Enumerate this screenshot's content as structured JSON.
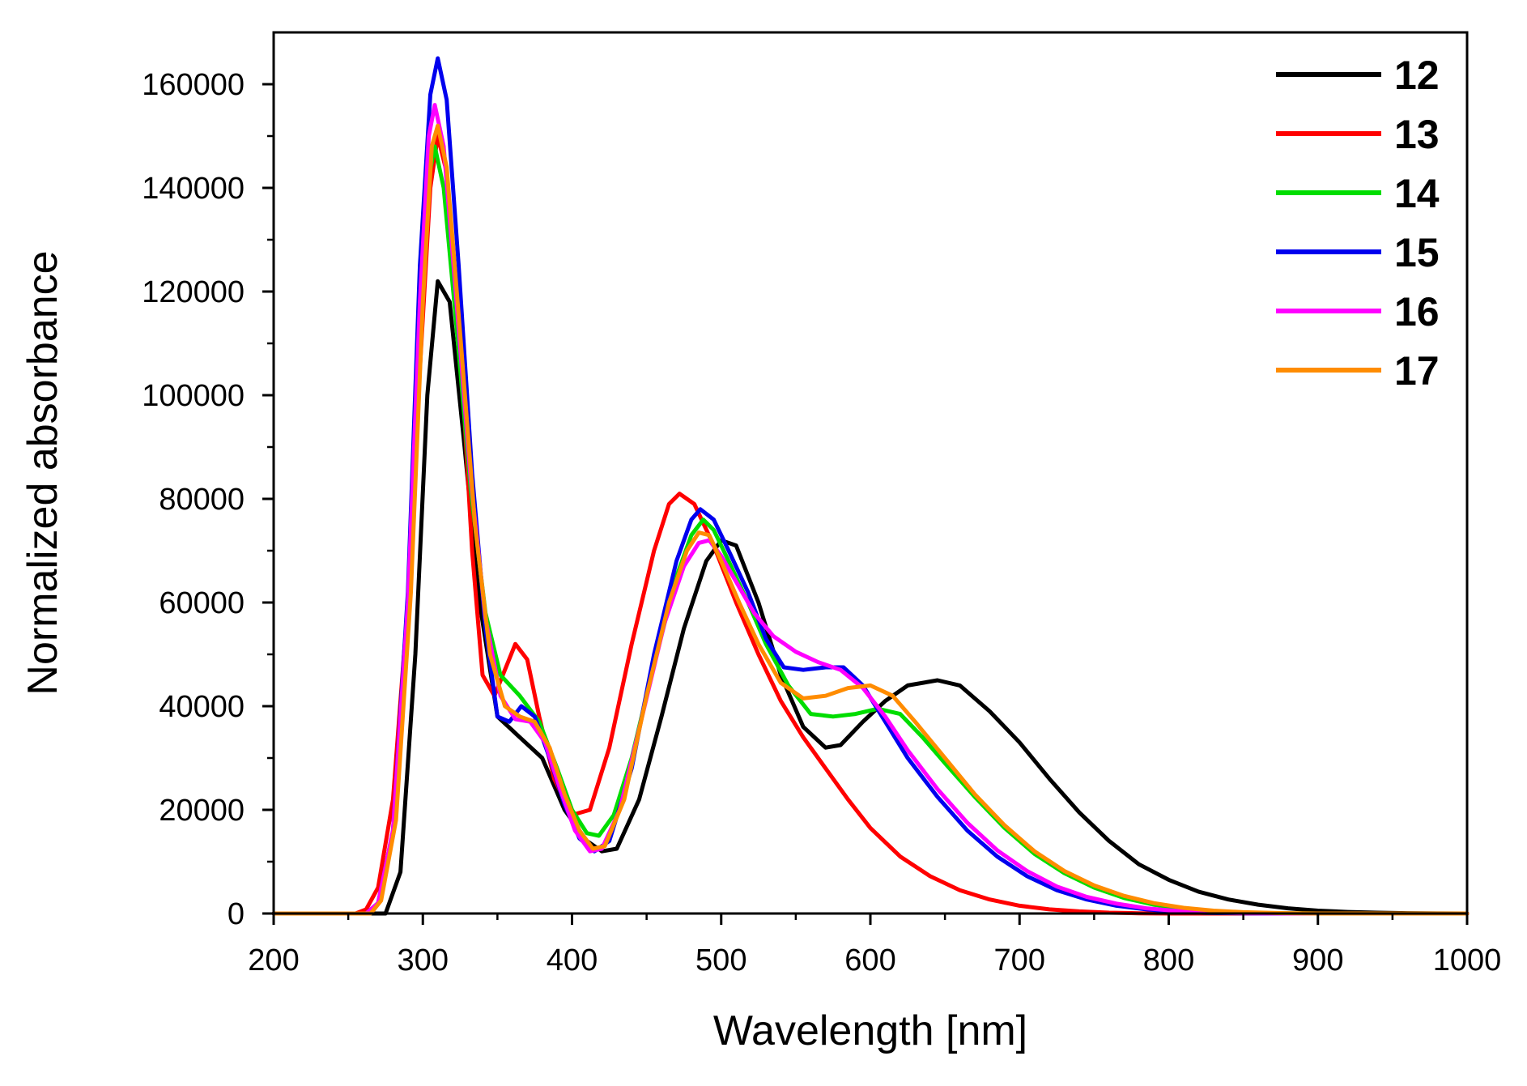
{
  "chart_data": {
    "type": "line",
    "xlabel": "Wavelength [nm]",
    "ylabel": "Normalized absorbance",
    "xlim": [
      200,
      1000
    ],
    "ylim": [
      0,
      170000
    ],
    "xticks": [
      200,
      300,
      400,
      500,
      600,
      700,
      800,
      900,
      1000
    ],
    "yticks": [
      0,
      20000,
      40000,
      60000,
      80000,
      100000,
      120000,
      140000,
      160000
    ],
    "grid": false,
    "legend_position": "top-right",
    "series": [
      {
        "name": "12",
        "color": "#000000",
        "points": [
          [
            200,
            0
          ],
          [
            265,
            0
          ],
          [
            275,
            0
          ],
          [
            285,
            8000
          ],
          [
            295,
            50000
          ],
          [
            303,
            100000
          ],
          [
            310,
            122000
          ],
          [
            318,
            118000
          ],
          [
            328,
            90000
          ],
          [
            338,
            60000
          ],
          [
            350,
            38000
          ],
          [
            365,
            34000
          ],
          [
            380,
            30000
          ],
          [
            395,
            20000
          ],
          [
            410,
            14000
          ],
          [
            420,
            12000
          ],
          [
            430,
            12500
          ],
          [
            445,
            22000
          ],
          [
            460,
            38000
          ],
          [
            475,
            55000
          ],
          [
            490,
            68000
          ],
          [
            500,
            72000
          ],
          [
            510,
            71000
          ],
          [
            525,
            60000
          ],
          [
            540,
            46000
          ],
          [
            555,
            36000
          ],
          [
            570,
            32000
          ],
          [
            580,
            32500
          ],
          [
            595,
            37000
          ],
          [
            610,
            41000
          ],
          [
            625,
            44000
          ],
          [
            645,
            45000
          ],
          [
            660,
            44000
          ],
          [
            680,
            39000
          ],
          [
            700,
            33000
          ],
          [
            720,
            26000
          ],
          [
            740,
            19500
          ],
          [
            760,
            14000
          ],
          [
            780,
            9500
          ],
          [
            800,
            6500
          ],
          [
            820,
            4200
          ],
          [
            840,
            2700
          ],
          [
            860,
            1700
          ],
          [
            880,
            1000
          ],
          [
            900,
            550
          ],
          [
            920,
            300
          ],
          [
            940,
            150
          ],
          [
            960,
            60
          ],
          [
            980,
            20
          ],
          [
            1000,
            0
          ]
        ]
      },
      {
        "name": "13",
        "color": "#ff0000",
        "points": [
          [
            200,
            0
          ],
          [
            255,
            0
          ],
          [
            262,
            800
          ],
          [
            270,
            5000
          ],
          [
            280,
            22000
          ],
          [
            290,
            60000
          ],
          [
            298,
            105000
          ],
          [
            305,
            140000
          ],
          [
            310,
            150000
          ],
          [
            316,
            143000
          ],
          [
            325,
            110000
          ],
          [
            333,
            70000
          ],
          [
            340,
            46000
          ],
          [
            348,
            42000
          ],
          [
            355,
            47000
          ],
          [
            362,
            52000
          ],
          [
            370,
            49000
          ],
          [
            378,
            38000
          ],
          [
            388,
            26000
          ],
          [
            400,
            19000
          ],
          [
            412,
            20000
          ],
          [
            425,
            32000
          ],
          [
            440,
            52000
          ],
          [
            455,
            70000
          ],
          [
            465,
            79000
          ],
          [
            472,
            81000
          ],
          [
            482,
            79000
          ],
          [
            495,
            71000
          ],
          [
            510,
            60000
          ],
          [
            525,
            50000
          ],
          [
            540,
            41000
          ],
          [
            555,
            34000
          ],
          [
            570,
            28000
          ],
          [
            585,
            22000
          ],
          [
            600,
            16500
          ],
          [
            620,
            11000
          ],
          [
            640,
            7200
          ],
          [
            660,
            4500
          ],
          [
            680,
            2700
          ],
          [
            700,
            1500
          ],
          [
            720,
            800
          ],
          [
            740,
            400
          ],
          [
            760,
            150
          ],
          [
            780,
            50
          ],
          [
            800,
            0
          ],
          [
            1000,
            0
          ]
        ]
      },
      {
        "name": "14",
        "color": "#00dd00",
        "points": [
          [
            200,
            0
          ],
          [
            262,
            0
          ],
          [
            270,
            2000
          ],
          [
            280,
            15000
          ],
          [
            290,
            55000
          ],
          [
            298,
            110000
          ],
          [
            304,
            142000
          ],
          [
            308,
            148000
          ],
          [
            314,
            140000
          ],
          [
            322,
            115000
          ],
          [
            332,
            82000
          ],
          [
            342,
            58000
          ],
          [
            352,
            46000
          ],
          [
            365,
            42000
          ],
          [
            378,
            37000
          ],
          [
            390,
            28000
          ],
          [
            400,
            20000
          ],
          [
            410,
            15500
          ],
          [
            418,
            15000
          ],
          [
            428,
            19000
          ],
          [
            440,
            30000
          ],
          [
            455,
            48000
          ],
          [
            470,
            65000
          ],
          [
            480,
            73000
          ],
          [
            488,
            76000
          ],
          [
            495,
            74000
          ],
          [
            505,
            68000
          ],
          [
            518,
            60000
          ],
          [
            530,
            52000
          ],
          [
            545,
            44000
          ],
          [
            560,
            38500
          ],
          [
            575,
            38000
          ],
          [
            590,
            38500
          ],
          [
            605,
            39500
          ],
          [
            620,
            38500
          ],
          [
            635,
            34000
          ],
          [
            650,
            29000
          ],
          [
            670,
            22500
          ],
          [
            690,
            16500
          ],
          [
            710,
            11500
          ],
          [
            730,
            7800
          ],
          [
            750,
            5000
          ],
          [
            770,
            3000
          ],
          [
            790,
            1700
          ],
          [
            810,
            900
          ],
          [
            830,
            400
          ],
          [
            850,
            150
          ],
          [
            870,
            50
          ],
          [
            900,
            0
          ],
          [
            1000,
            0
          ]
        ]
      },
      {
        "name": "15",
        "color": "#0000ee",
        "points": [
          [
            200,
            0
          ],
          [
            262,
            0
          ],
          [
            270,
            2000
          ],
          [
            280,
            16000
          ],
          [
            290,
            62000
          ],
          [
            298,
            125000
          ],
          [
            305,
            158000
          ],
          [
            310,
            165000
          ],
          [
            316,
            157000
          ],
          [
            324,
            125000
          ],
          [
            333,
            85000
          ],
          [
            342,
            55000
          ],
          [
            350,
            38000
          ],
          [
            358,
            37000
          ],
          [
            366,
            40000
          ],
          [
            375,
            38000
          ],
          [
            385,
            30000
          ],
          [
            395,
            21000
          ],
          [
            405,
            14500
          ],
          [
            415,
            12000
          ],
          [
            425,
            14000
          ],
          [
            440,
            28000
          ],
          [
            455,
            50000
          ],
          [
            470,
            68000
          ],
          [
            480,
            76000
          ],
          [
            486,
            78000
          ],
          [
            495,
            76000
          ],
          [
            505,
            70000
          ],
          [
            518,
            62000
          ],
          [
            530,
            53000
          ],
          [
            542,
            47500
          ],
          [
            555,
            47000
          ],
          [
            570,
            47500
          ],
          [
            582,
            47500
          ],
          [
            595,
            44000
          ],
          [
            610,
            37000
          ],
          [
            625,
            30000
          ],
          [
            645,
            22500
          ],
          [
            665,
            16000
          ],
          [
            685,
            11000
          ],
          [
            705,
            7200
          ],
          [
            725,
            4500
          ],
          [
            745,
            2700
          ],
          [
            765,
            1500
          ],
          [
            785,
            800
          ],
          [
            805,
            350
          ],
          [
            825,
            120
          ],
          [
            850,
            30
          ],
          [
            880,
            0
          ],
          [
            1000,
            0
          ]
        ]
      },
      {
        "name": "16",
        "color": "#ff00ff",
        "points": [
          [
            200,
            0
          ],
          [
            262,
            0
          ],
          [
            270,
            2000
          ],
          [
            280,
            16000
          ],
          [
            290,
            60000
          ],
          [
            298,
            118000
          ],
          [
            304,
            150000
          ],
          [
            308,
            156000
          ],
          [
            314,
            148000
          ],
          [
            322,
            120000
          ],
          [
            332,
            84000
          ],
          [
            342,
            57000
          ],
          [
            352,
            42000
          ],
          [
            362,
            37500
          ],
          [
            372,
            37000
          ],
          [
            382,
            33000
          ],
          [
            392,
            24000
          ],
          [
            402,
            16000
          ],
          [
            412,
            12000
          ],
          [
            420,
            12500
          ],
          [
            432,
            20000
          ],
          [
            447,
            38000
          ],
          [
            462,
            56000
          ],
          [
            475,
            67000
          ],
          [
            485,
            71500
          ],
          [
            492,
            72000
          ],
          [
            500,
            69000
          ],
          [
            510,
            64000
          ],
          [
            522,
            58000
          ],
          [
            535,
            53500
          ],
          [
            550,
            50500
          ],
          [
            565,
            48500
          ],
          [
            580,
            47000
          ],
          [
            595,
            43500
          ],
          [
            610,
            38000
          ],
          [
            625,
            31500
          ],
          [
            645,
            24000
          ],
          [
            665,
            17500
          ],
          [
            685,
            12200
          ],
          [
            705,
            8200
          ],
          [
            725,
            5200
          ],
          [
            745,
            3200
          ],
          [
            765,
            1900
          ],
          [
            785,
            1000
          ],
          [
            805,
            500
          ],
          [
            825,
            200
          ],
          [
            850,
            60
          ],
          [
            880,
            0
          ],
          [
            1000,
            0
          ]
        ]
      },
      {
        "name": "17",
        "color": "#ff8c00",
        "points": [
          [
            200,
            0
          ],
          [
            265,
            0
          ],
          [
            272,
            2500
          ],
          [
            282,
            18000
          ],
          [
            292,
            62000
          ],
          [
            300,
            118000
          ],
          [
            306,
            148000
          ],
          [
            310,
            152000
          ],
          [
            316,
            144000
          ],
          [
            325,
            112000
          ],
          [
            335,
            75000
          ],
          [
            345,
            50000
          ],
          [
            355,
            40000
          ],
          [
            365,
            38000
          ],
          [
            375,
            37000
          ],
          [
            385,
            32000
          ],
          [
            395,
            23000
          ],
          [
            405,
            16000
          ],
          [
            414,
            12500
          ],
          [
            422,
            13000
          ],
          [
            435,
            22000
          ],
          [
            450,
            42000
          ],
          [
            465,
            60000
          ],
          [
            477,
            70000
          ],
          [
            485,
            73500
          ],
          [
            492,
            73000
          ],
          [
            500,
            68000
          ],
          [
            512,
            60000
          ],
          [
            525,
            52000
          ],
          [
            540,
            44500
          ],
          [
            555,
            41500
          ],
          [
            570,
            42000
          ],
          [
            585,
            43500
          ],
          [
            600,
            44000
          ],
          [
            615,
            42000
          ],
          [
            630,
            37000
          ],
          [
            650,
            30000
          ],
          [
            670,
            23000
          ],
          [
            690,
            17000
          ],
          [
            710,
            12000
          ],
          [
            730,
            8200
          ],
          [
            750,
            5400
          ],
          [
            770,
            3400
          ],
          [
            790,
            2000
          ],
          [
            810,
            1100
          ],
          [
            830,
            550
          ],
          [
            850,
            250
          ],
          [
            875,
            80
          ],
          [
            900,
            0
          ],
          [
            1000,
            0
          ]
        ]
      }
    ]
  }
}
